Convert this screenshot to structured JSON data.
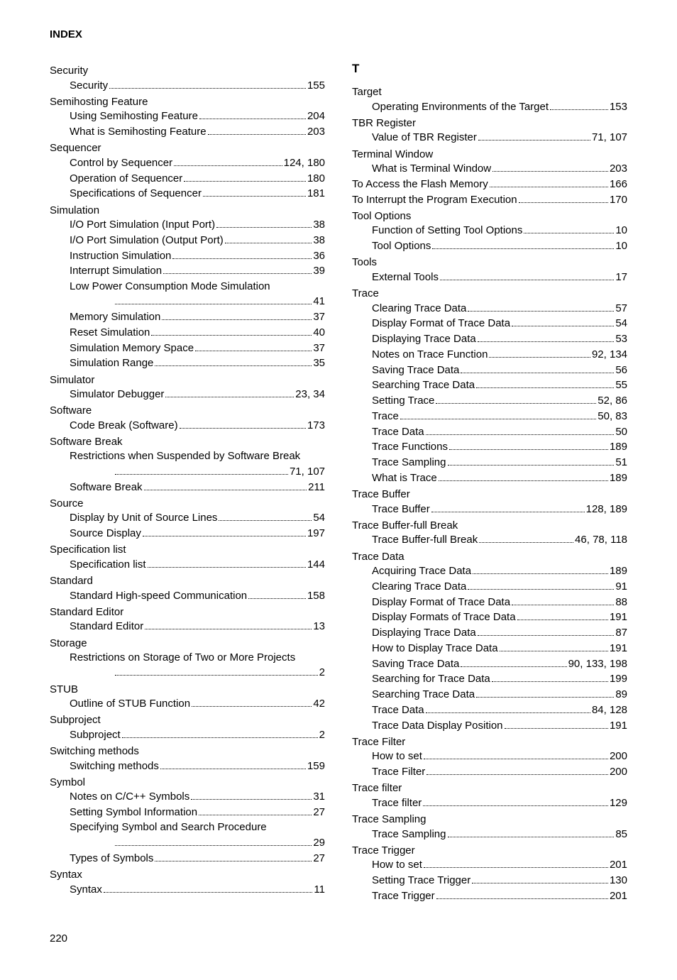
{
  "header": "INDEX",
  "pageNumber": "220",
  "sectionLetter_T": "T",
  "left": [
    {
      "type": "topic",
      "text": "Security"
    },
    {
      "type": "entry",
      "label": "Security",
      "pages": "155"
    },
    {
      "type": "topic",
      "text": "Semihosting Feature"
    },
    {
      "type": "entry",
      "label": "Using Semihosting Feature",
      "pages": "204"
    },
    {
      "type": "entry",
      "label": "What is Semihosting Feature",
      "pages": "203"
    },
    {
      "type": "topic",
      "text": "Sequencer"
    },
    {
      "type": "entry",
      "label": "Control by Sequencer",
      "pages": "124, 180"
    },
    {
      "type": "entry",
      "label": "Operation of Sequencer",
      "pages": "180"
    },
    {
      "type": "entry",
      "label": "Specifications of Sequencer",
      "pages": "181"
    },
    {
      "type": "topic",
      "text": "Simulation"
    },
    {
      "type": "entry",
      "label": "I/O Port Simulation (Input Port)",
      "pages": "38"
    },
    {
      "type": "entry",
      "label": "I/O Port Simulation (Output Port)",
      "pages": "38"
    },
    {
      "type": "entry",
      "label": "Instruction Simulation",
      "pages": "36"
    },
    {
      "type": "entry",
      "label": "Interrupt Simulation",
      "pages": "39"
    },
    {
      "type": "entry",
      "label": "Low Power Consumption Mode Simulation",
      "nocont": true
    },
    {
      "type": "cont",
      "pages": "41"
    },
    {
      "type": "entry",
      "label": "Memory Simulation",
      "pages": "37"
    },
    {
      "type": "entry",
      "label": "Reset Simulation",
      "pages": "40"
    },
    {
      "type": "entry",
      "label": "Simulation Memory Space",
      "pages": "37"
    },
    {
      "type": "entry",
      "label": "Simulation Range",
      "pages": "35"
    },
    {
      "type": "topic",
      "text": "Simulator"
    },
    {
      "type": "entry",
      "label": "Simulator Debugger",
      "pages": "23, 34"
    },
    {
      "type": "topic",
      "text": "Software"
    },
    {
      "type": "entry",
      "label": "Code Break (Software)",
      "pages": "173"
    },
    {
      "type": "topic",
      "text": "Software Break"
    },
    {
      "type": "entry",
      "label": "Restrictions when Suspended by Software Break",
      "nocont": true
    },
    {
      "type": "cont",
      "pages": "71, 107"
    },
    {
      "type": "entry",
      "label": "Software Break",
      "pages": "211"
    },
    {
      "type": "topic",
      "text": "Source"
    },
    {
      "type": "entry",
      "label": "Display by Unit of Source Lines",
      "pages": "54"
    },
    {
      "type": "entry",
      "label": "Source Display",
      "pages": "197"
    },
    {
      "type": "topic",
      "text": "Specification list"
    },
    {
      "type": "entry",
      "label": "Specification list",
      "pages": "144"
    },
    {
      "type": "topic",
      "text": "Standard"
    },
    {
      "type": "entry",
      "label": "Standard High-speed Communication",
      "pages": "158"
    },
    {
      "type": "topic",
      "text": "Standard Editor"
    },
    {
      "type": "entry",
      "label": "Standard Editor",
      "pages": "13"
    },
    {
      "type": "topic",
      "text": "Storage"
    },
    {
      "type": "entry",
      "label": "Restrictions on Storage of Two or More Projects",
      "nocont": true
    },
    {
      "type": "cont",
      "pages": "2"
    },
    {
      "type": "topic",
      "text": "STUB"
    },
    {
      "type": "entry",
      "label": "Outline of STUB Function",
      "pages": "42"
    },
    {
      "type": "topic",
      "text": "Subproject"
    },
    {
      "type": "entry",
      "label": "Subproject",
      "pages": "2"
    },
    {
      "type": "topic",
      "text": "Switching methods"
    },
    {
      "type": "entry",
      "label": "Switching methods",
      "pages": "159"
    },
    {
      "type": "topic",
      "text": "Symbol"
    },
    {
      "type": "entry",
      "label": "Notes on C/C++ Symbols",
      "pages": "31"
    },
    {
      "type": "entry",
      "label": "Setting Symbol Information",
      "pages": "27"
    },
    {
      "type": "entry",
      "label": "Specifying Symbol and Search Procedure",
      "nocont": true
    },
    {
      "type": "cont",
      "pages": "29"
    },
    {
      "type": "entry",
      "label": "Types of Symbols",
      "pages": "27"
    },
    {
      "type": "topic",
      "text": "Syntax"
    },
    {
      "type": "entry",
      "label": "Syntax",
      "pages": "11"
    }
  ],
  "right": [
    {
      "type": "letter"
    },
    {
      "type": "topic",
      "text": "Target"
    },
    {
      "type": "entry",
      "label": "Operating Environments of the Target",
      "pages": "153"
    },
    {
      "type": "topic",
      "text": "TBR Register"
    },
    {
      "type": "entry",
      "label": "Value of TBR Register",
      "pages": "71, 107"
    },
    {
      "type": "topic",
      "text": "Terminal Window"
    },
    {
      "type": "entry",
      "label": "What is Terminal Window",
      "pages": "203"
    },
    {
      "type": "entry0",
      "label": "To Access the Flash Memory",
      "pages": "166"
    },
    {
      "type": "entry0",
      "label": "To Interrupt the Program Execution",
      "pages": "170"
    },
    {
      "type": "topic",
      "text": "Tool Options"
    },
    {
      "type": "entry",
      "label": "Function of Setting Tool Options",
      "pages": "10"
    },
    {
      "type": "entry",
      "label": "Tool Options",
      "pages": "10"
    },
    {
      "type": "topic",
      "text": "Tools"
    },
    {
      "type": "entry",
      "label": "External Tools",
      "pages": "17"
    },
    {
      "type": "topic",
      "text": "Trace"
    },
    {
      "type": "entry",
      "label": "Clearing Trace Data",
      "pages": "57"
    },
    {
      "type": "entry",
      "label": "Display Format of Trace Data",
      "pages": "54"
    },
    {
      "type": "entry",
      "label": "Displaying Trace Data",
      "pages": "53"
    },
    {
      "type": "entry",
      "label": "Notes on Trace Function",
      "pages": "92, 134"
    },
    {
      "type": "entry",
      "label": "Saving Trace Data",
      "pages": "56"
    },
    {
      "type": "entry",
      "label": "Searching Trace Data",
      "pages": "55"
    },
    {
      "type": "entry",
      "label": "Setting Trace",
      "pages": "52, 86"
    },
    {
      "type": "entry",
      "label": "Trace",
      "pages": "50, 83"
    },
    {
      "type": "entry",
      "label": "Trace Data",
      "pages": "50"
    },
    {
      "type": "entry",
      "label": "Trace Functions",
      "pages": "189"
    },
    {
      "type": "entry",
      "label": "Trace Sampling",
      "pages": "51"
    },
    {
      "type": "entry",
      "label": "What is Trace",
      "pages": "189"
    },
    {
      "type": "topic",
      "text": "Trace Buffer"
    },
    {
      "type": "entry",
      "label": "Trace Buffer",
      "pages": "128, 189"
    },
    {
      "type": "topic",
      "text": "Trace Buffer-full Break"
    },
    {
      "type": "entry",
      "label": "Trace Buffer-full Break",
      "pages": "46, 78, 118"
    },
    {
      "type": "topic",
      "text": "Trace Data"
    },
    {
      "type": "entry",
      "label": "Acquiring Trace Data",
      "pages": "189"
    },
    {
      "type": "entry",
      "label": "Clearing Trace Data",
      "pages": "91"
    },
    {
      "type": "entry",
      "label": "Display Format of Trace Data",
      "pages": "88"
    },
    {
      "type": "entry",
      "label": "Display Formats of Trace Data",
      "pages": "191"
    },
    {
      "type": "entry",
      "label": "Displaying Trace Data",
      "pages": "87"
    },
    {
      "type": "entry",
      "label": "How to Display Trace Data",
      "pages": "191"
    },
    {
      "type": "entry",
      "label": "Saving Trace Data",
      "pages": "90, 133, 198"
    },
    {
      "type": "entry",
      "label": "Searching for Trace Data",
      "pages": "199"
    },
    {
      "type": "entry",
      "label": "Searching Trace Data",
      "pages": "89"
    },
    {
      "type": "entry",
      "label": "Trace Data",
      "pages": "84, 128"
    },
    {
      "type": "entry",
      "label": "Trace Data Display Position",
      "pages": "191"
    },
    {
      "type": "topic",
      "text": "Trace Filter"
    },
    {
      "type": "entry",
      "label": "How to set",
      "pages": "200"
    },
    {
      "type": "entry",
      "label": "Trace Filter",
      "pages": "200"
    },
    {
      "type": "topic",
      "text": "Trace filter"
    },
    {
      "type": "entry",
      "label": "Trace filter",
      "pages": "129"
    },
    {
      "type": "topic",
      "text": "Trace Sampling"
    },
    {
      "type": "entry",
      "label": "Trace Sampling",
      "pages": "85"
    },
    {
      "type": "topic",
      "text": "Trace Trigger"
    },
    {
      "type": "entry",
      "label": "How to set",
      "pages": "201"
    },
    {
      "type": "entry",
      "label": "Setting Trace Trigger",
      "pages": "130"
    },
    {
      "type": "entry",
      "label": "Trace Trigger",
      "pages": "201"
    }
  ]
}
